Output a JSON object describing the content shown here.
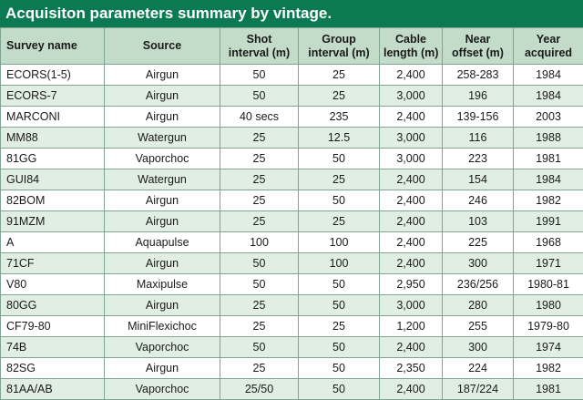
{
  "title": "Acquisiton parameters summary by vintage.",
  "columns": [
    {
      "line1": "Survey name",
      "line2": ""
    },
    {
      "line1": "Source",
      "line2": ""
    },
    {
      "line1": "Shot",
      "line2": "interval (m)"
    },
    {
      "line1": "Group",
      "line2": "interval (m)"
    },
    {
      "line1": "Cable",
      "line2": "length (m)"
    },
    {
      "line1": "Near",
      "line2": "offset (m)"
    },
    {
      "line1": "Year",
      "line2": "acquired"
    }
  ],
  "rows": [
    [
      "ECORS(1-5)",
      "Airgun",
      "50",
      "25",
      "2,400",
      "258-283",
      "1984"
    ],
    [
      "ECORS-7",
      "Airgun",
      "50",
      "25",
      "3,000",
      "196",
      "1984"
    ],
    [
      "MARCONI",
      "Airgun",
      "40 secs",
      "235",
      "2,400",
      "139-156",
      "2003"
    ],
    [
      "MM88",
      "Watergun",
      "25",
      "12.5",
      "3,000",
      "116",
      "1988"
    ],
    [
      "81GG",
      "Vaporchoc",
      "25",
      "50",
      "3,000",
      "223",
      "1981"
    ],
    [
      "GUI84",
      "Watergun",
      "25",
      "25",
      "2,400",
      "154",
      "1984"
    ],
    [
      "82BOM",
      "Airgun",
      "25",
      "50",
      "2,400",
      "246",
      "1982"
    ],
    [
      "91MZM",
      "Airgun",
      "25",
      "25",
      "2,400",
      "103",
      "1991"
    ],
    [
      "A",
      "Aquapulse",
      "100",
      "100",
      "2,400",
      "225",
      "1968"
    ],
    [
      "71CF",
      "Airgun",
      "50",
      "100",
      "2,400",
      "300",
      "1971"
    ],
    [
      "V80",
      "Maxipulse",
      "50",
      "50",
      "2,950",
      "236/256",
      "1980-81"
    ],
    [
      "80GG",
      "Airgun",
      "25",
      "50",
      "3,000",
      "280",
      "1980"
    ],
    [
      "CF79-80",
      "MiniFlexichoc",
      "25",
      "25",
      "1,200",
      "255",
      "1979-80"
    ],
    [
      "74B",
      "Vaporchoc",
      "50",
      "50",
      "2,400",
      "300",
      "1974"
    ],
    [
      "82SG",
      "Airgun",
      "25",
      "50",
      "2,350",
      "224",
      "1982"
    ],
    [
      "81AA/AB",
      "Vaporchoc",
      "25/50",
      "50",
      "2,400",
      "187/224",
      "1981"
    ]
  ]
}
